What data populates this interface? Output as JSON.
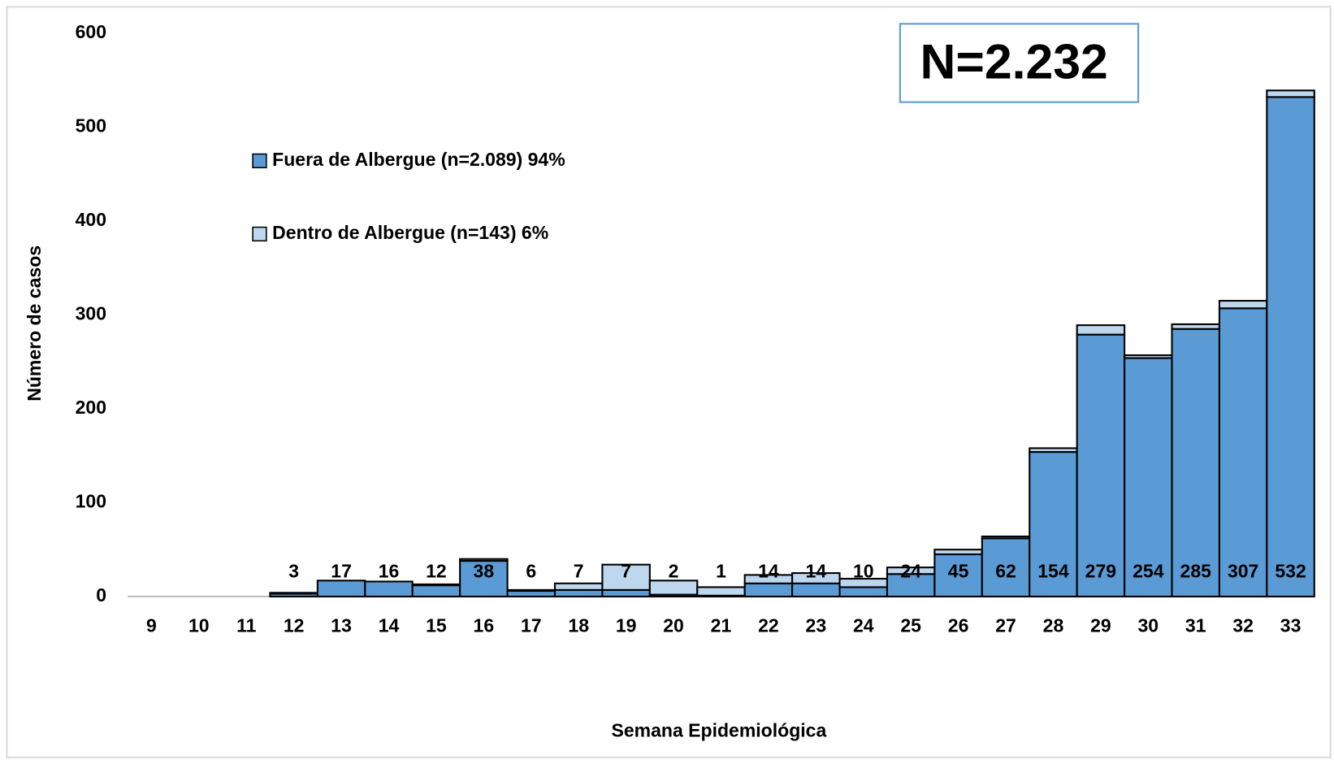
{
  "chart_data": {
    "type": "stacked_bar",
    "annotation": "N=2.232",
    "x_label": "Semana Epidemiológica",
    "y_label": "Número de casos",
    "categories": [
      "9",
      "10",
      "11",
      "12",
      "13",
      "14",
      "15",
      "16",
      "17",
      "18",
      "19",
      "20",
      "21",
      "22",
      "23",
      "24",
      "25",
      "26",
      "27",
      "28",
      "29",
      "30",
      "31",
      "32",
      "33"
    ],
    "series": [
      {
        "name": "Fuera de Albergue (n=2.089) 94%",
        "color": "#5b9bd5",
        "values": [
          null,
          null,
          null,
          3,
          17,
          16,
          12,
          38,
          6,
          7,
          7,
          2,
          1,
          14,
          14,
          10,
          24,
          45,
          62,
          154,
          279,
          254,
          285,
          307,
          532
        ]
      },
      {
        "name": "Dentro de Albergue (n=143) 6%",
        "color": "#bdd7ee",
        "values": [
          null,
          null,
          null,
          1,
          0,
          0,
          1,
          2,
          1,
          7,
          27,
          15,
          9,
          9,
          11,
          9,
          7,
          5,
          2,
          4,
          10,
          3,
          5,
          8,
          7
        ]
      }
    ],
    "ylim": [
      0,
      600
    ],
    "yticks": [
      0,
      100,
      200,
      300,
      400,
      500,
      600
    ],
    "grid": false,
    "legend": "top-left"
  }
}
